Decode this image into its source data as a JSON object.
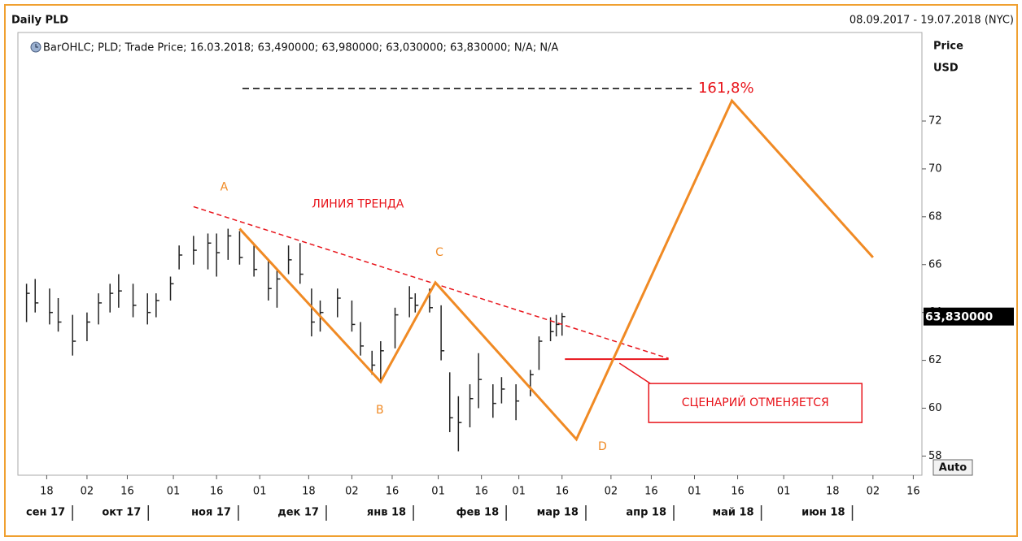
{
  "chart_data": {
    "type": "ohlc",
    "title": "Daily PLD",
    "date_range": "08.09.2017 - 19.07.2018 (NYC)",
    "legend": "BarOHLC; PLD; Trade Price; 16.03.2018; 63,490000; 63,980000; 63,030000; 63,830000; N/A; N/A",
    "y_label": "Price",
    "y_unit": "USD",
    "scale_button": "Auto",
    "color": "#222222",
    "x": [
      "2017-09-11",
      "2017-09-14",
      "2017-09-19",
      "2017-09-22",
      "2017-09-27",
      "2017-10-02",
      "2017-10-06",
      "2017-10-10",
      "2017-10-13",
      "2017-10-18",
      "2017-10-23",
      "2017-10-26",
      "2017-10-31",
      "2017-11-03",
      "2017-11-08",
      "2017-11-13",
      "2017-11-16",
      "2017-11-20",
      "2017-11-24",
      "2017-11-29",
      "2017-12-04",
      "2017-12-07",
      "2017-12-11",
      "2017-12-15",
      "2017-12-19",
      "2017-12-22",
      "2017-12-28",
      "2018-01-02",
      "2018-01-05",
      "2018-01-09",
      "2018-01-12",
      "2018-01-17",
      "2018-01-22",
      "2018-01-24",
      "2018-01-29",
      "2018-02-02",
      "2018-02-05",
      "2018-02-08",
      "2018-02-12",
      "2018-02-15",
      "2018-02-20",
      "2018-02-23",
      "2018-02-28",
      "2018-03-05",
      "2018-03-08",
      "2018-03-12",
      "2018-03-14",
      "2018-03-16"
    ],
    "high": [
      65.2,
      65.4,
      65.0,
      64.6,
      63.9,
      64.0,
      64.8,
      65.2,
      65.6,
      65.2,
      64.8,
      64.8,
      65.5,
      66.8,
      67.2,
      67.3,
      67.3,
      67.5,
      67.4,
      66.8,
      66.2,
      65.8,
      66.8,
      66.9,
      65.0,
      64.5,
      65.0,
      64.5,
      63.6,
      62.4,
      62.8,
      64.2,
      65.1,
      64.8,
      65.0,
      64.3,
      61.5,
      60.5,
      61.0,
      62.3,
      61.0,
      61.3,
      61.0,
      61.6,
      63.0,
      63.8,
      63.9,
      63.98
    ],
    "low": [
      63.6,
      64.0,
      63.5,
      63.2,
      62.2,
      62.8,
      63.5,
      64.0,
      64.2,
      63.8,
      63.5,
      63.8,
      64.5,
      65.8,
      66.0,
      65.8,
      65.5,
      66.2,
      66.0,
      65.5,
      64.5,
      64.2,
      65.6,
      65.2,
      63.0,
      63.2,
      63.8,
      63.2,
      62.2,
      61.4,
      61.2,
      62.5,
      63.8,
      64.0,
      64.0,
      62.0,
      59.0,
      58.2,
      59.2,
      60.0,
      59.6,
      60.2,
      59.5,
      60.5,
      61.6,
      62.8,
      63.0,
      63.03
    ],
    "close": [
      64.8,
      64.4,
      64.0,
      63.6,
      62.8,
      63.6,
      64.4,
      64.8,
      64.9,
      64.3,
      64.0,
      64.5,
      65.2,
      66.4,
      66.6,
      66.9,
      66.5,
      67.2,
      66.3,
      65.8,
      65.0,
      65.4,
      66.2,
      65.6,
      63.6,
      64.0,
      64.6,
      63.5,
      62.6,
      61.8,
      62.4,
      63.9,
      64.6,
      64.3,
      64.2,
      62.4,
      59.6,
      59.4,
      60.4,
      61.2,
      60.2,
      60.8,
      60.3,
      61.4,
      62.8,
      63.2,
      63.5,
      63.83
    ],
    "last_price": {
      "value": 63.83,
      "label": "63,830000"
    },
    "xlim": [
      "2017-09-08",
      "2018-07-19"
    ],
    "ylim": [
      57.2,
      75.7
    ],
    "yticks": [
      58,
      60,
      62,
      64,
      66,
      68,
      70,
      72
    ],
    "xticks": [
      {
        "value": "2017-09-18",
        "label": "18"
      },
      {
        "value": "2017-10-02",
        "label": "02"
      },
      {
        "value": "2017-10-16",
        "label": "16"
      },
      {
        "value": "2017-11-01",
        "label": "01"
      },
      {
        "value": "2017-11-16",
        "label": "16"
      },
      {
        "value": "2017-12-01",
        "label": "01"
      },
      {
        "value": "2017-12-18",
        "label": "18"
      },
      {
        "value": "2018-01-02",
        "label": "02"
      },
      {
        "value": "2018-01-16",
        "label": "16"
      },
      {
        "value": "2018-02-01",
        "label": "01"
      },
      {
        "value": "2018-02-16",
        "label": "16"
      },
      {
        "value": "2018-03-01",
        "label": "01"
      },
      {
        "value": "2018-03-16",
        "label": "16"
      },
      {
        "value": "2018-04-02",
        "label": "02"
      },
      {
        "value": "2018-04-16",
        "label": "16"
      },
      {
        "value": "2018-05-01",
        "label": "01"
      },
      {
        "value": "2018-05-16",
        "label": "16"
      },
      {
        "value": "2018-06-01",
        "label": "01"
      },
      {
        "value": "2018-06-18",
        "label": "18"
      },
      {
        "value": "2018-07-02",
        "label": "02"
      },
      {
        "value": "2018-07-16",
        "label": "16"
      }
    ],
    "months": [
      {
        "value": "2017-09-01",
        "label": "сен 17"
      },
      {
        "value": "2017-10-01",
        "label": "окт 17"
      },
      {
        "value": "2017-11-01",
        "label": "ноя 17"
      },
      {
        "value": "2017-12-01",
        "label": "дек 17"
      },
      {
        "value": "2018-01-01",
        "label": "янв 18"
      },
      {
        "value": "2018-02-01",
        "label": "фев 18"
      },
      {
        "value": "2018-03-01",
        "label": "мар 18"
      },
      {
        "value": "2018-04-01",
        "label": "апр 18"
      },
      {
        "value": "2018-05-01",
        "label": "май 18"
      },
      {
        "value": "2018-06-01",
        "label": "июн 18"
      }
    ],
    "wave": {
      "color": "#f08a24",
      "points": [
        {
          "x": "2017-11-24",
          "y": 67.5,
          "label": "A"
        },
        {
          "x": "2018-01-12",
          "y": 61.1,
          "label": "B"
        },
        {
          "x": "2018-01-31",
          "y": 65.25,
          "label": "C"
        },
        {
          "x": "2018-03-21",
          "y": 58.7,
          "label": "D"
        },
        {
          "x": "2018-05-14",
          "y": 72.85
        },
        {
          "x": "2018-07-02",
          "y": 66.3
        }
      ]
    },
    "trend_line": {
      "color": "#e8141b",
      "label": "ЛИНИЯ ТРЕНДА",
      "points": [
        {
          "x": "2017-11-08",
          "y": 68.42
        },
        {
          "x": "2018-04-22",
          "y": 62.08
        }
      ]
    },
    "fib_level": {
      "color": "#e8141b",
      "label": "161,8%",
      "y": 73.36,
      "x": [
        "2017-11-25",
        "2018-04-30"
      ]
    },
    "invalidation": {
      "color": "#e8141b",
      "label": "СЦЕНАРИЙ ОТМЕНЯЕТСЯ",
      "y": 62.05,
      "x": [
        "2018-03-17",
        "2018-04-22"
      ]
    }
  }
}
